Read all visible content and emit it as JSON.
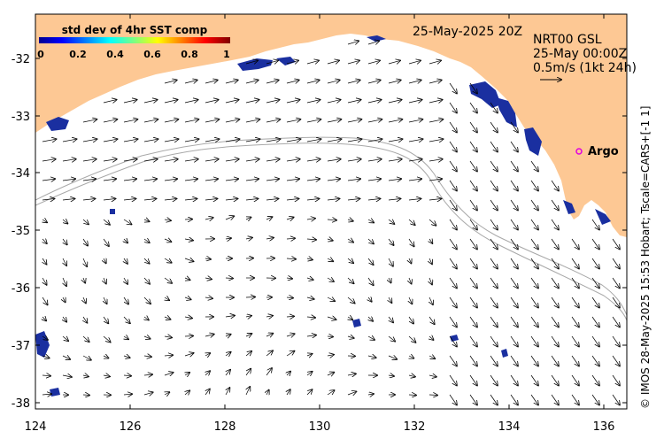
{
  "map": {
    "date_label": "25-May-2025 20Z",
    "product_lines": [
      "NRT00 GSL",
      "25-May 00:00Z",
      "0.5m/s (1kt 24h)"
    ],
    "argo_label": "Argo",
    "credit": "© IMOS 28-May-2025 15:53 Hobart; Tscale=CARS+[-1 1]",
    "colorbar": {
      "title": "std dev of 4hr SST comp",
      "tick_labels": [
        "0",
        "0.2",
        "0.4",
        "0.6",
        "0.8",
        "1"
      ]
    },
    "x_axis": {
      "range": [
        124,
        136.5
      ],
      "tick_labels": [
        "124",
        "126",
        "128",
        "130",
        "132",
        "134",
        "136"
      ]
    },
    "y_axis": {
      "range": [
        -38.05,
        -31.25
      ],
      "tick_labels": [
        "-32",
        "-33",
        "-34",
        "-35",
        "-36",
        "-37",
        "-38"
      ]
    },
    "colors": {
      "land": "#fdc894",
      "sst_patch": "#1a2fa0",
      "contour": "#a8a8a8",
      "argo": "#e000e0"
    }
  }
}
